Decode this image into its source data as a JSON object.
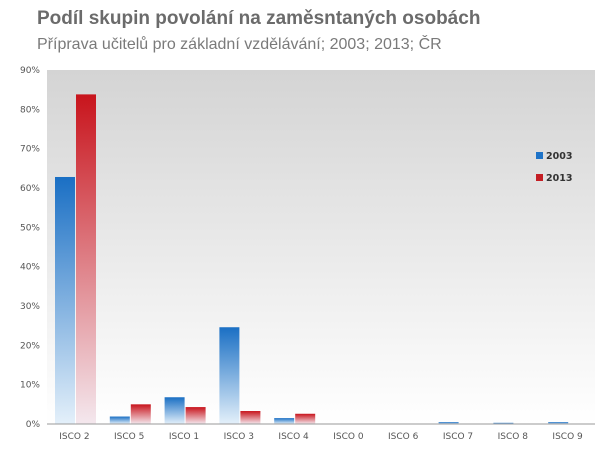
{
  "chart_data": {
    "type": "bar",
    "title": "Podíl skupin povolání na zaměsntaných osobách",
    "subtitle": "Příprava učitelů pro základní vzdělávání; 2003; 2013; ČR",
    "categories": [
      "ISCO 2",
      "ISCO 5",
      "ISCO 1",
      "ISCO 3",
      "ISCO 4",
      "ISCO 0",
      "ISCO 6",
      "ISCO 7",
      "ISCO 8",
      "ISCO 9"
    ],
    "series": [
      {
        "name": "2003",
        "values": [
          62.8,
          1.9,
          6.8,
          24.6,
          1.5,
          0,
          0,
          0.5,
          0.3,
          0.5
        ],
        "color": "#1e73c8"
      },
      {
        "name": "2013",
        "values": [
          83.8,
          5.0,
          4.3,
          3.3,
          2.6,
          0,
          0,
          0,
          0,
          0
        ],
        "color": "#c41e24"
      }
    ],
    "ylim": [
      0,
      90
    ],
    "ytick_step": 10,
    "ytick_labels": [
      "0%",
      "10%",
      "20%",
      "30%",
      "40%",
      "50%",
      "60%",
      "70%",
      "80%",
      "90%"
    ],
    "grid": false,
    "legend_position": "right"
  }
}
